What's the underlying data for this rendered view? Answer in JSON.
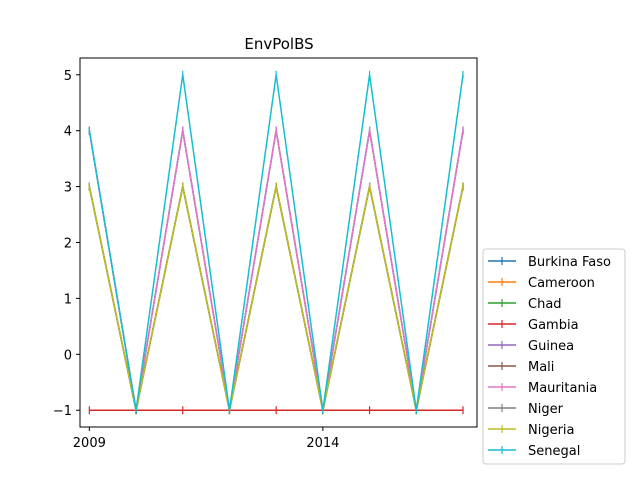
{
  "chart_data": {
    "type": "line",
    "title": "EnvPolBS",
    "xlabel": "",
    "ylabel": "",
    "x": [
      2009,
      2010,
      2011,
      2012,
      2013,
      2014,
      2015,
      2016,
      2017
    ],
    "xticks": [
      2009,
      2014
    ],
    "xlim": [
      2008.8,
      2017.3
    ],
    "ylim": [
      -1.3,
      5.3
    ],
    "yticks": [
      -1,
      0,
      1,
      2,
      3,
      4,
      5
    ],
    "ytick_labels": [
      "−1",
      "0",
      "1",
      "2",
      "3",
      "4",
      "5"
    ],
    "grid": false,
    "legend_position": "lower-right-outside",
    "marker": "|",
    "series": [
      {
        "name": "Burkina Faso",
        "color": "#1f77b4",
        "values": [
          4,
          -1,
          4,
          -1,
          4,
          -1,
          4,
          -1,
          4
        ]
      },
      {
        "name": "Cameroon",
        "color": "#ff7f0e",
        "values": [
          3,
          -1,
          3,
          -1,
          3,
          -1,
          3,
          -1,
          3
        ]
      },
      {
        "name": "Chad",
        "color": "#2ca02c",
        "values": [
          3,
          -1,
          3,
          -1,
          3,
          -1,
          3,
          -1,
          3
        ]
      },
      {
        "name": "Gambia",
        "color": "#d62728",
        "values": [
          -1,
          -1,
          -1,
          -1,
          -1,
          -1,
          -1,
          -1,
          -1
        ]
      },
      {
        "name": "Guinea",
        "color": "#9467bd",
        "values": [
          4,
          -1,
          4,
          -1,
          4,
          -1,
          4,
          -1,
          4
        ]
      },
      {
        "name": "Mali",
        "color": "#8c564b",
        "values": [
          3,
          -1,
          3,
          -1,
          3,
          -1,
          3,
          -1,
          3
        ]
      },
      {
        "name": "Mauritania",
        "color": "#e377c2",
        "values": [
          4,
          -1,
          4,
          -1,
          4,
          -1,
          4,
          -1,
          4
        ]
      },
      {
        "name": "Niger",
        "color": "#7f7f7f",
        "values": [
          3,
          -1,
          3,
          -1,
          3,
          -1,
          3,
          -1,
          3
        ]
      },
      {
        "name": "Nigeria",
        "color": "#bcbd22",
        "values": [
          3,
          -1,
          3,
          -1,
          3,
          -1,
          3,
          -1,
          3
        ]
      },
      {
        "name": "Senegal",
        "color": "#17becf",
        "values": [
          4,
          -1,
          5,
          -1,
          5,
          -1,
          5,
          -1,
          5
        ]
      }
    ]
  }
}
